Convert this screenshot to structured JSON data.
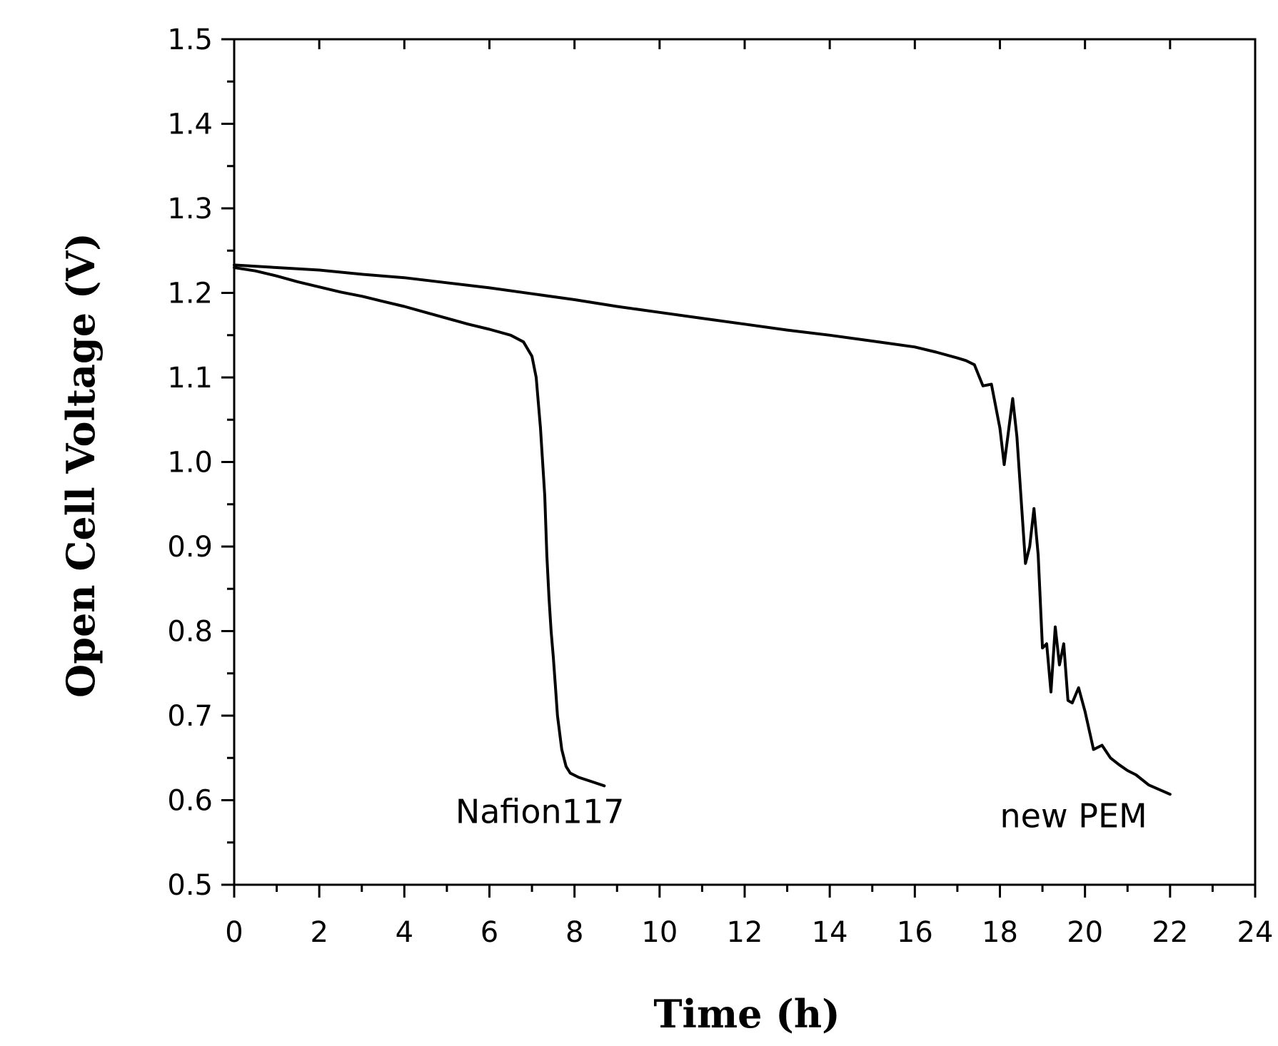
{
  "chart_data": {
    "type": "line",
    "xlabel": "Time (h)",
    "ylabel": "Open Cell Voltage (V)",
    "xlim": [
      0,
      24
    ],
    "ylim": [
      0.5,
      1.5
    ],
    "x_ticks": [
      0,
      2,
      4,
      6,
      8,
      10,
      12,
      14,
      16,
      18,
      20,
      22,
      24
    ],
    "y_ticks": [
      "0.5",
      "0.6",
      "0.7",
      "0.8",
      "0.9",
      "1.0",
      "1.1",
      "1.2",
      "1.3",
      "1.4",
      "1.5"
    ],
    "grid": false,
    "legend": "none",
    "line_color": "#000000",
    "series": [
      {
        "name": "Nafion117",
        "x": [
          0,
          0.5,
          1,
          1.5,
          2,
          2.5,
          3,
          3.5,
          4,
          4.5,
          5,
          5.5,
          6,
          6.5,
          6.8,
          7.0,
          7.1,
          7.2,
          7.3,
          7.35,
          7.4,
          7.45,
          7.5,
          7.55,
          7.6,
          7.7,
          7.8,
          7.9,
          8.1,
          8.4,
          8.7
        ],
        "y": [
          1.23,
          1.226,
          1.22,
          1.213,
          1.207,
          1.201,
          1.196,
          1.19,
          1.184,
          1.177,
          1.17,
          1.163,
          1.157,
          1.15,
          1.142,
          1.125,
          1.1,
          1.04,
          0.96,
          0.89,
          0.84,
          0.8,
          0.77,
          0.735,
          0.7,
          0.66,
          0.64,
          0.632,
          0.627,
          0.622,
          0.617
        ]
      },
      {
        "name": "new PEM",
        "x": [
          0,
          1,
          2,
          3,
          4,
          5,
          6,
          7,
          8,
          9,
          10,
          11,
          12,
          13,
          14,
          15,
          16,
          16.5,
          17,
          17.2,
          17.4,
          17.6,
          17.8,
          18.0,
          18.1,
          18.3,
          18.4,
          18.6,
          18.7,
          18.8,
          18.9,
          19.0,
          19.1,
          19.2,
          19.3,
          19.4,
          19.5,
          19.6,
          19.7,
          19.85,
          20.0,
          20.2,
          20.4,
          20.6,
          20.8,
          21.0,
          21.2,
          21.5,
          22.0
        ],
        "y": [
          1.233,
          1.23,
          1.227,
          1.222,
          1.218,
          1.212,
          1.206,
          1.199,
          1.192,
          1.184,
          1.177,
          1.17,
          1.163,
          1.156,
          1.15,
          1.143,
          1.136,
          1.13,
          1.123,
          1.12,
          1.115,
          1.09,
          1.092,
          1.04,
          0.997,
          1.075,
          1.03,
          0.88,
          0.9,
          0.945,
          0.89,
          0.78,
          0.785,
          0.728,
          0.805,
          0.76,
          0.785,
          0.718,
          0.715,
          0.733,
          0.705,
          0.66,
          0.665,
          0.65,
          0.642,
          0.635,
          0.63,
          0.618,
          0.607
        ]
      }
    ],
    "annotations": [
      {
        "text": "Nafion117",
        "x": 5.2,
        "y": 0.6
      },
      {
        "text": "new PEM",
        "x": 18.0,
        "y": 0.595
      }
    ]
  }
}
